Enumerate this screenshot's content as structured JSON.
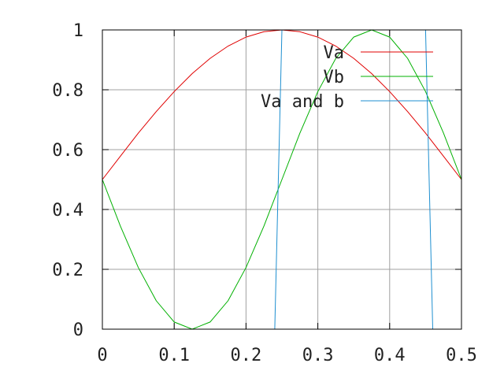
{
  "chart_data": {
    "type": "line",
    "title": "",
    "xlabel": "",
    "ylabel": "",
    "xlim": [
      0,
      0.5
    ],
    "ylim": [
      0,
      1
    ],
    "grid": true,
    "legend_position": "top-right",
    "x_ticks": [
      "0",
      "0.1",
      "0.2",
      "0.3",
      "0.4",
      "0.5"
    ],
    "y_ticks": [
      "0",
      "0.2",
      "0.4",
      "0.6",
      "0.8",
      "1"
    ],
    "series": [
      {
        "name": "Va",
        "color": "#e00000",
        "x": [
          0,
          0.025,
          0.05,
          0.075,
          0.1,
          0.125,
          0.15,
          0.175,
          0.2,
          0.225,
          0.25,
          0.275,
          0.3,
          0.325,
          0.35,
          0.375,
          0.4,
          0.425,
          0.45,
          0.475,
          0.5
        ],
        "y": [
          0.5,
          0.578,
          0.655,
          0.727,
          0.794,
          0.854,
          0.905,
          0.946,
          0.976,
          0.994,
          1.0,
          0.994,
          0.976,
          0.946,
          0.905,
          0.854,
          0.794,
          0.727,
          0.655,
          0.578,
          0.5
        ]
      },
      {
        "name": "Vb",
        "color": "#00b000",
        "x": [
          0,
          0.025,
          0.05,
          0.075,
          0.1,
          0.125,
          0.15,
          0.175,
          0.2,
          0.225,
          0.25,
          0.275,
          0.3,
          0.325,
          0.35,
          0.375,
          0.4,
          0.425,
          0.45,
          0.475,
          0.5
        ],
        "y": [
          0.5,
          0.345,
          0.206,
          0.095,
          0.024,
          0.0,
          0.024,
          0.095,
          0.206,
          0.345,
          0.5,
          0.655,
          0.794,
          0.905,
          0.976,
          1.0,
          0.976,
          0.905,
          0.794,
          0.655,
          0.5
        ]
      },
      {
        "name": "Va and b",
        "color": "#1e8fd0",
        "x": [
          0,
          0.24,
          0.25,
          0.26,
          0.45,
          0.46,
          0.47,
          0.5
        ],
        "y": [
          0,
          0,
          1.0,
          1.0,
          1.0,
          0.0,
          0,
          0
        ]
      }
    ]
  }
}
